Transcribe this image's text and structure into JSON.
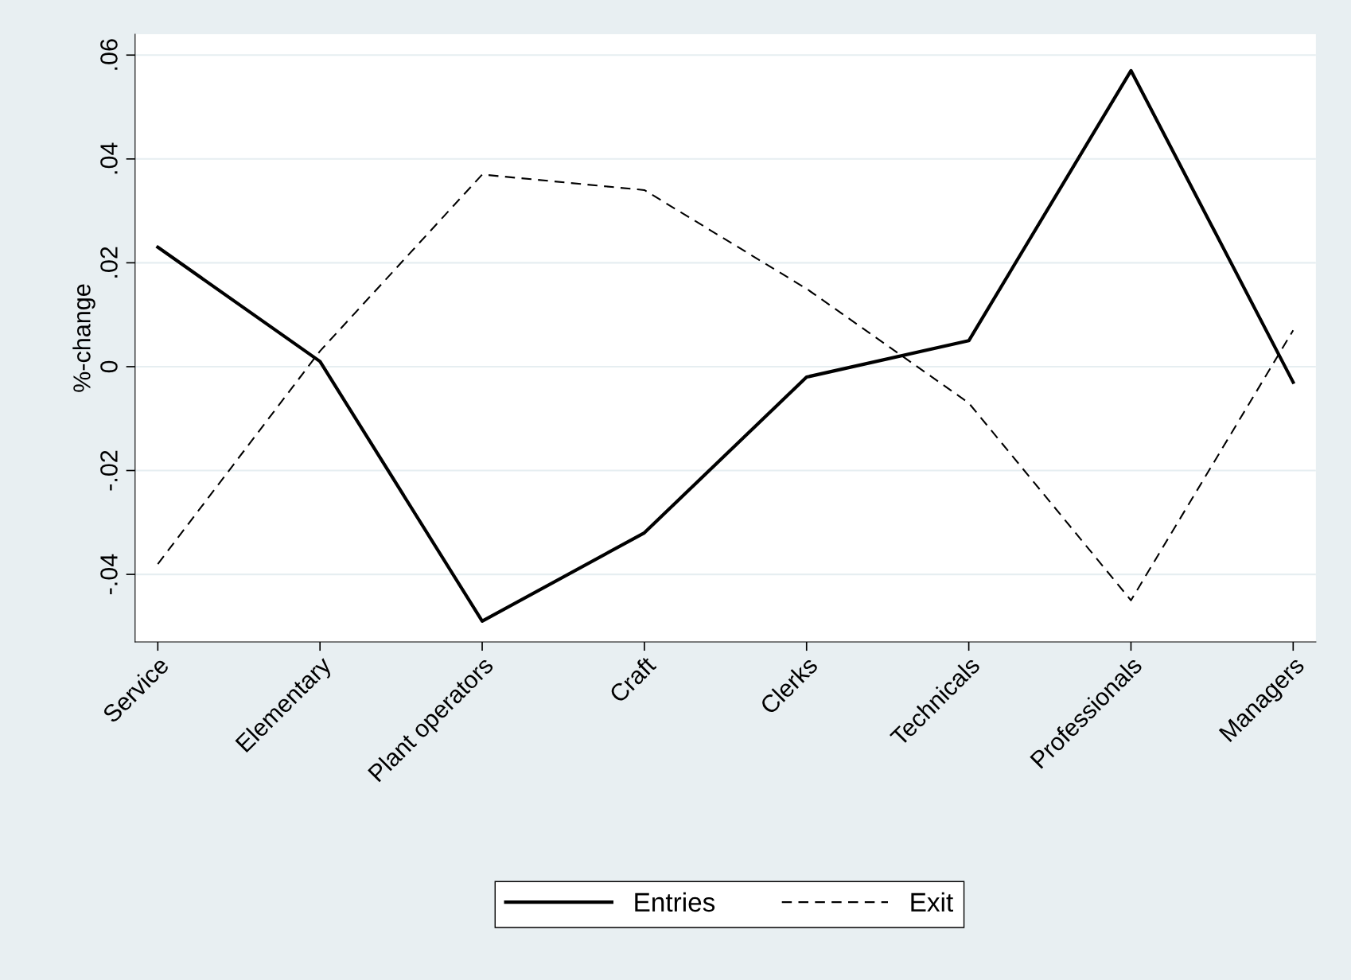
{
  "chart_data": {
    "type": "line",
    "ylabel": "%-change",
    "categories": [
      "Service",
      "Elementary",
      "Plant operators",
      "Craft",
      "Clerks",
      "Technicals",
      "Professionals",
      "Managers"
    ],
    "series": [
      {
        "name": "Entries",
        "color": "#000000",
        "line_style": "solid",
        "values": [
          0.023,
          0.001,
          -0.049,
          -0.032,
          -0.002,
          0.005,
          0.057,
          -0.003
        ]
      },
      {
        "name": "Exit",
        "color": "#000000",
        "line_style": "dashed",
        "values": [
          -0.038,
          0.003,
          0.037,
          0.034,
          0.015,
          -0.007,
          -0.045,
          0.007
        ]
      }
    ],
    "ylim": [
      -0.053,
      0.064
    ],
    "yticks": [
      {
        "value": -0.04,
        "label": "-.04"
      },
      {
        "value": -0.02,
        "label": "-.02"
      },
      {
        "value": 0,
        "label": "0"
      },
      {
        "value": 0.02,
        "label": ".02"
      },
      {
        "value": 0.04,
        "label": ".04"
      },
      {
        "value": 0.06,
        "label": ".06"
      }
    ],
    "grid": "y",
    "legend": "bottom",
    "marker": "none"
  }
}
